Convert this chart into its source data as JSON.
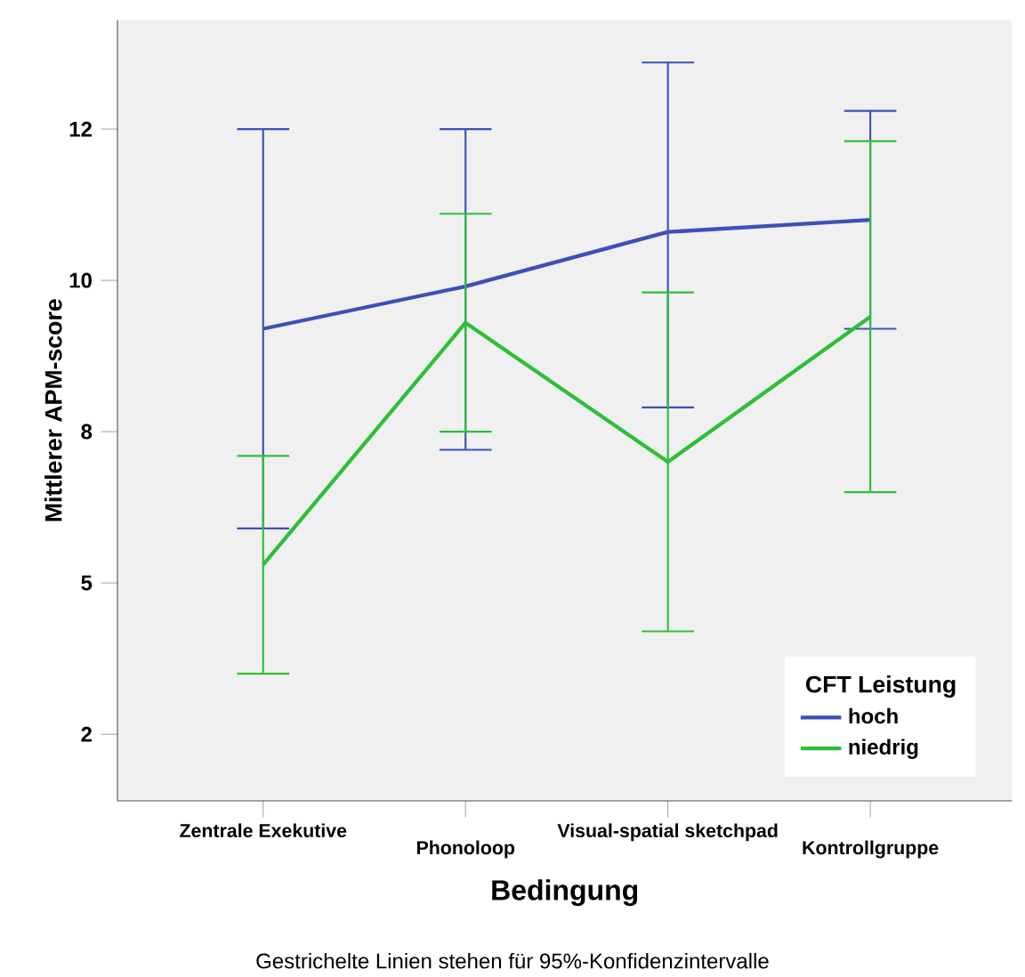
{
  "chart_data": {
    "type": "line",
    "xlabel": "Bedingung",
    "ylabel": "Mittlerer APM-score",
    "legend_title": "CFT Leistung",
    "legend": "bottom right",
    "grid": false,
    "marker": "none",
    "line_style": "solid",
    "categories": [
      "Zentrale Exekutive",
      "Phonoloop",
      "Visual-spatial sketchpad",
      "Kontrollgruppe"
    ],
    "ylim": [
      1.4,
      14.3
    ],
    "yticks": [
      {
        "value": 2.5,
        "label": "2"
      },
      {
        "value": 5,
        "label": "5"
      },
      {
        "value": 7.5,
        "label": "8"
      },
      {
        "value": 10,
        "label": "10"
      },
      {
        "value": 12.5,
        "label": "12"
      }
    ],
    "series": [
      {
        "name": "hoch",
        "color": "#3f4fb8",
        "values": [
          9.2,
          9.9,
          10.8,
          11.0
        ],
        "errors": [
          [
            5.9,
            12.5
          ],
          [
            7.2,
            12.5
          ],
          [
            7.9,
            13.6
          ],
          [
            9.2,
            12.8
          ]
        ]
      },
      {
        "name": "niedrig",
        "color": "#2dbf3a",
        "values": [
          5.3,
          9.3,
          7.0,
          9.4
        ],
        "errors": [
          [
            3.5,
            7.1
          ],
          [
            7.5,
            11.1
          ],
          [
            4.2,
            9.8
          ],
          [
            6.5,
            12.3
          ]
        ]
      }
    ],
    "annotations": [
      "Gestrichelte Linien stehen für 95%-Konfidenzintervalle"
    ]
  }
}
